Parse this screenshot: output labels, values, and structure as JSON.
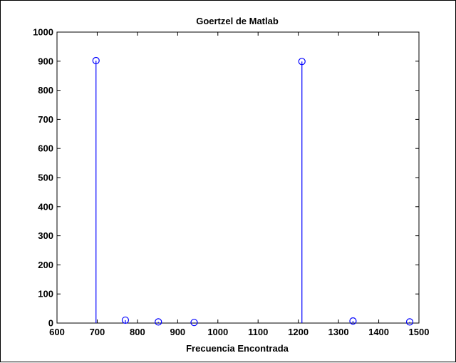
{
  "chart_data": {
    "type": "stem",
    "title": "Goertzel de Matlab",
    "xlabel": "Frecuencia Encontrada",
    "ylabel": "",
    "xlim": [
      600,
      1500
    ],
    "ylim": [
      0,
      1000
    ],
    "xticks": [
      600,
      700,
      800,
      900,
      1000,
      1100,
      1200,
      1300,
      1400,
      1500
    ],
    "yticks": [
      0,
      100,
      200,
      300,
      400,
      500,
      600,
      700,
      800,
      900,
      1000
    ],
    "grid": false,
    "series": [
      {
        "x": [
          697,
          770,
          852,
          941,
          1209,
          1336,
          1477
        ],
        "y": [
          902,
          10,
          4,
          2,
          899,
          7,
          4
        ],
        "color": "#0000ff",
        "marker": "circle"
      }
    ]
  }
}
